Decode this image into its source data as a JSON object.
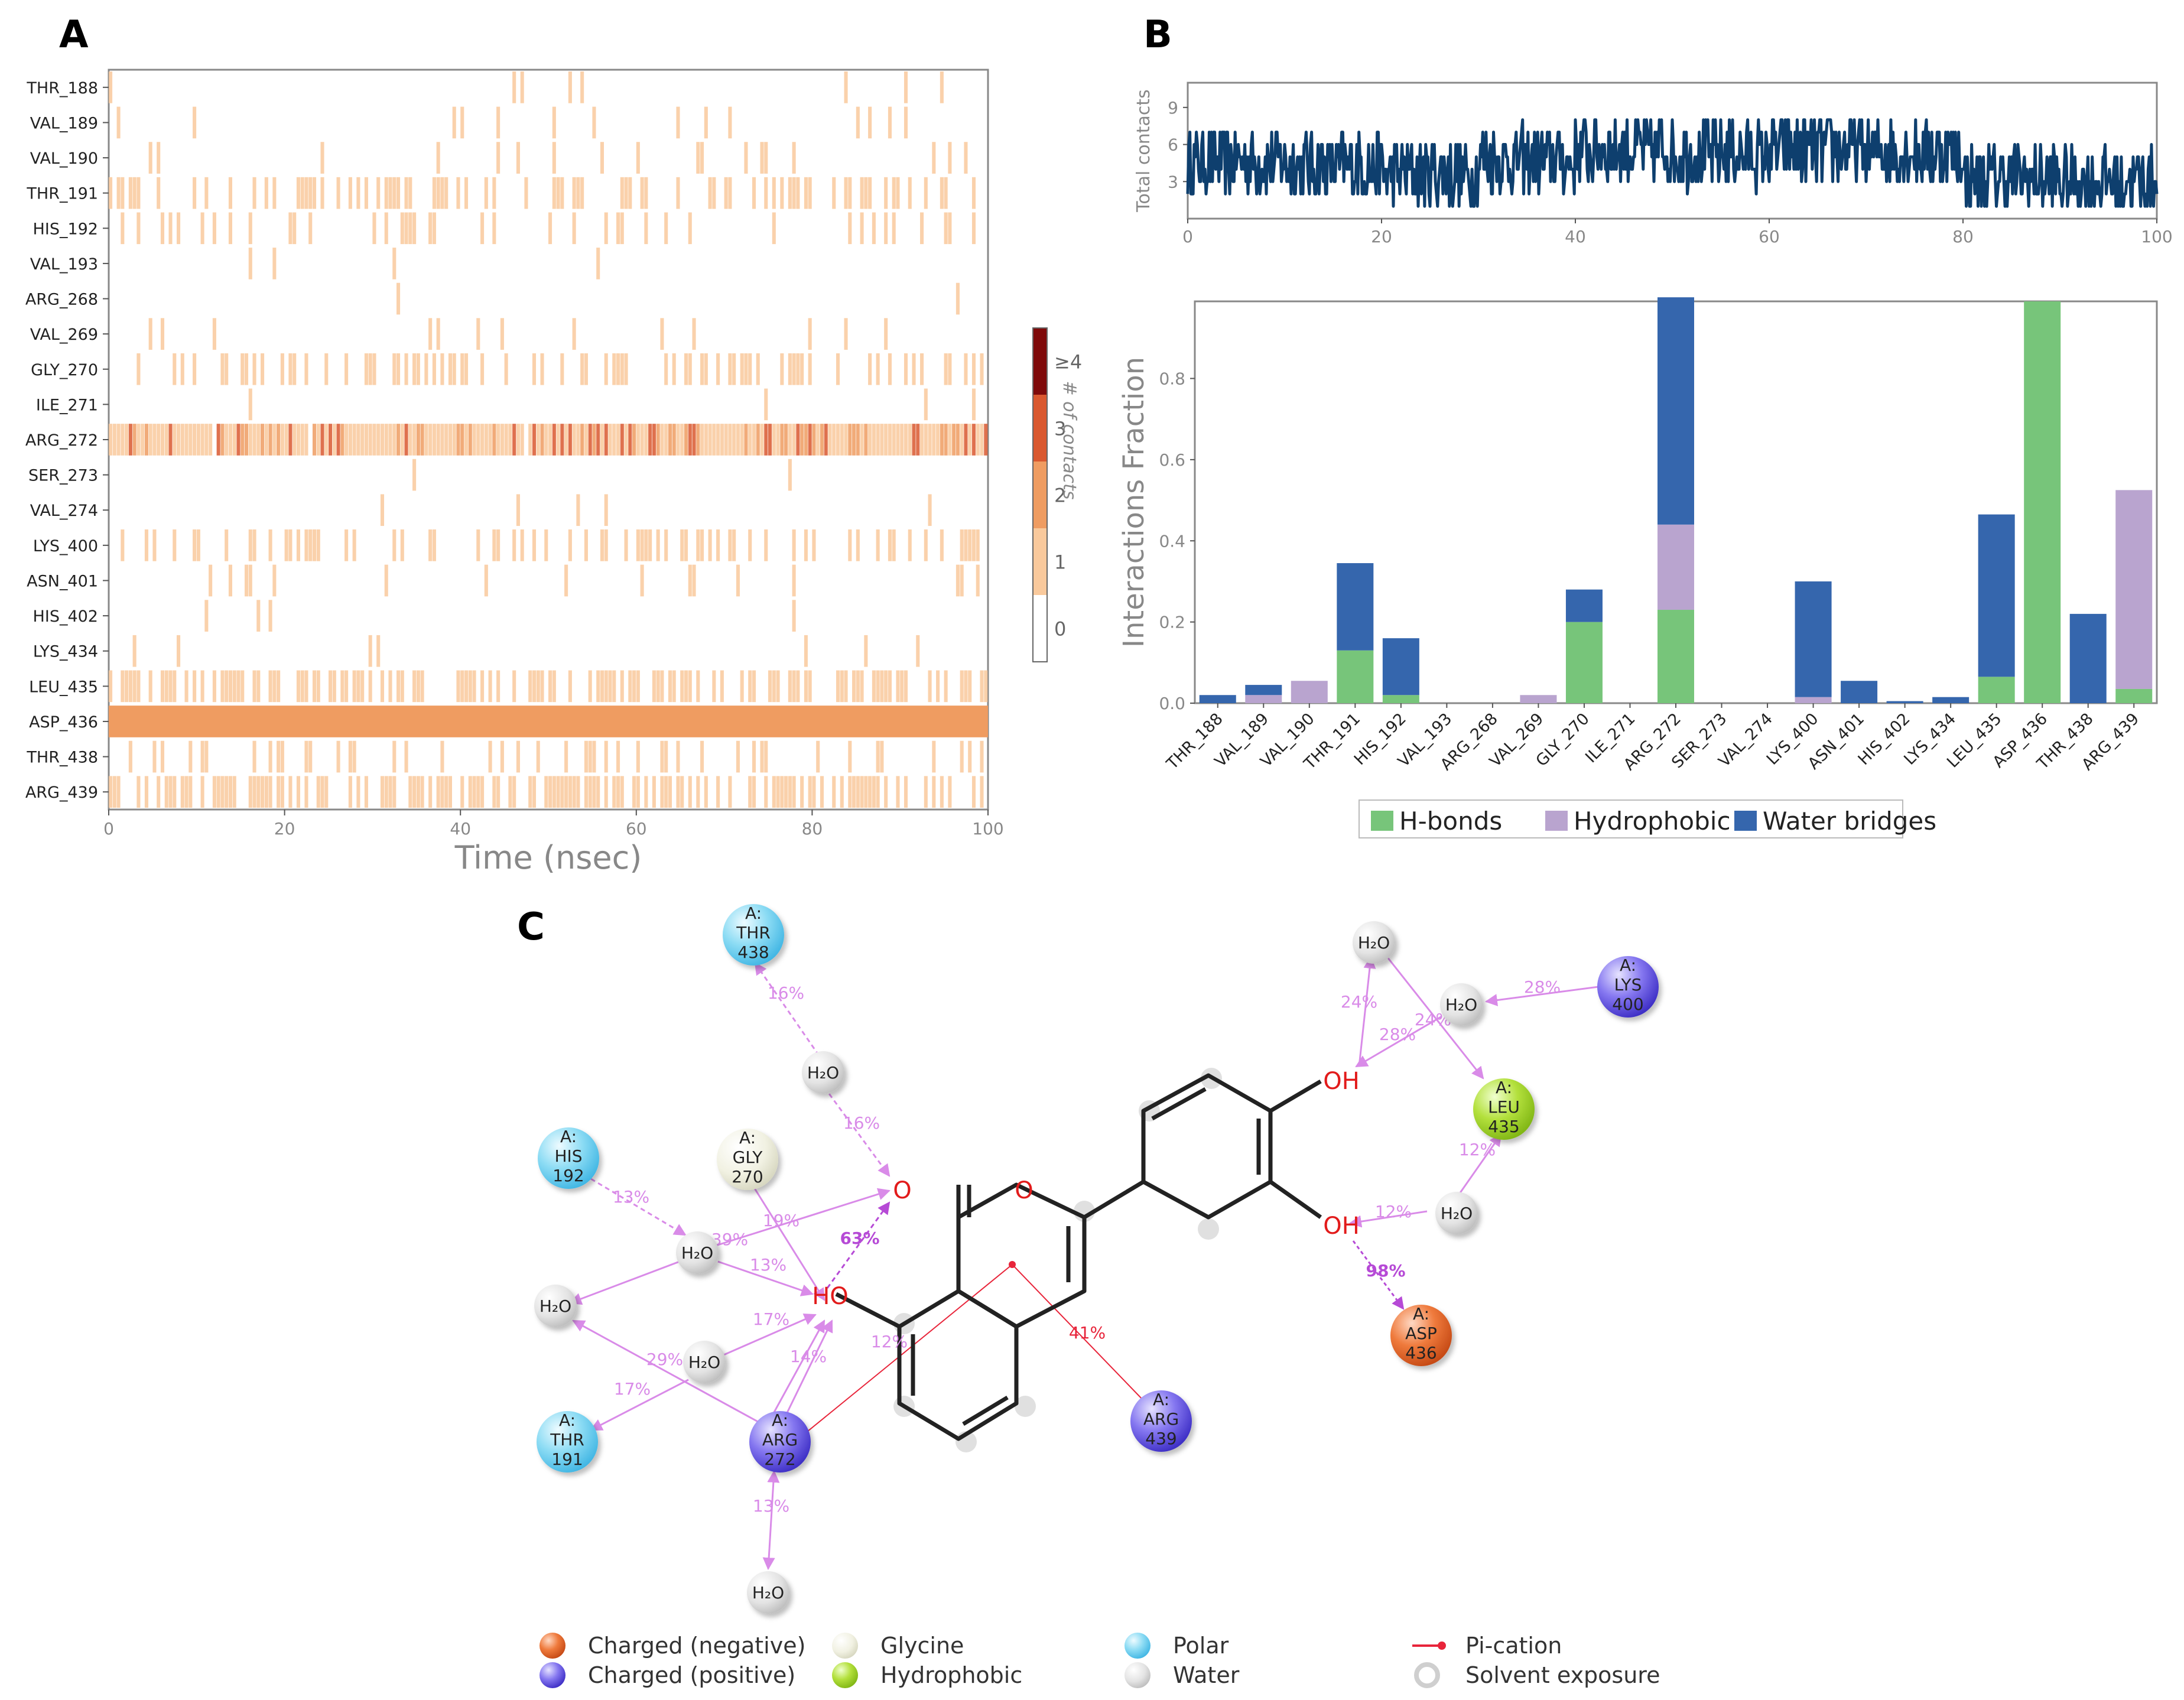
{
  "panel_labels": {
    "a": "A",
    "b": "B",
    "c": "C"
  },
  "colors": {
    "contact_scale": [
      "#ffffff",
      "#f9c99c",
      "#ef9c61",
      "#d9582f",
      "#7f0a0a"
    ],
    "hbond": "#77c57a",
    "hydrophobic": "#b9a4cf",
    "water_bridge": "#3566ad",
    "trace": "#0e3f6e",
    "interaction_arrow": "#d98be8",
    "pi_cation": "#e8243a",
    "charged_negative": "#e8632a",
    "charged_positive": "#6a5ce0",
    "glycine": "#eeeedc",
    "hydrophobic_res": "#a6d630",
    "polar": "#78d3ef",
    "water": "#d9d9d9"
  },
  "chart_data": [
    {
      "id": "A",
      "type": "heatmap",
      "xlabel": "Time (nsec)",
      "xlim": [
        0,
        100
      ],
      "xticks": [
        "0",
        "20",
        "40",
        "60",
        "80",
        "100"
      ],
      "rows": [
        "THR_188",
        "VAL_189",
        "VAL_190",
        "THR_191",
        "HIS_192",
        "VAL_193",
        "ARG_268",
        "VAL_269",
        "GLY_270",
        "ILE_271",
        "ARG_272",
        "SER_273",
        "VAL_274",
        "LYS_400",
        "ASN_401",
        "HIS_402",
        "LYS_434",
        "LEU_435",
        "ASP_436",
        "THR_438",
        "ARG_439"
      ],
      "row_occupancy": [
        0.02,
        0.05,
        0.06,
        0.34,
        0.16,
        0.0,
        0.0,
        0.03,
        0.28,
        0.0,
        0.95,
        0.0,
        0.0,
        0.3,
        0.06,
        0.0,
        0.02,
        0.47,
        1.0,
        0.22,
        0.52
      ],
      "colorbar": {
        "label": "# of contacts",
        "ticks": [
          "0",
          "1",
          "2",
          "3",
          "≥4"
        ]
      }
    },
    {
      "id": "B-top",
      "type": "line",
      "ylabel": "Total contacts",
      "xlim": [
        0,
        100
      ],
      "ylim": [
        0,
        11
      ],
      "xticks": [
        "0",
        "20",
        "40",
        "60",
        "80",
        "100"
      ],
      "yticks": [
        "3",
        "6",
        "9"
      ],
      "mean_by_decile": [
        4.6,
        4.3,
        3.7,
        4.8,
        5.6,
        5.2,
        5.6,
        5.4,
        3.3,
        3.0
      ]
    },
    {
      "id": "B-bottom",
      "type": "bar",
      "ylabel": "Interactions Fraction",
      "ylim": [
        0,
        0.99
      ],
      "yticks": [
        "0.0",
        "0.2",
        "0.4",
        "0.6",
        "0.8"
      ],
      "categories": [
        "THR_188",
        "VAL_189",
        "VAL_190",
        "THR_191",
        "HIS_192",
        "VAL_193",
        "ARG_268",
        "VAL_269",
        "GLY_270",
        "ILE_271",
        "ARG_272",
        "SER_273",
        "VAL_274",
        "LYS_400",
        "ASN_401",
        "HIS_402",
        "LYS_434",
        "LEU_435",
        "ASP_436",
        "THR_438",
        "ARG_439"
      ],
      "series": [
        {
          "name": "H-bonds",
          "values": [
            0,
            0,
            0,
            0.13,
            0.02,
            0,
            0,
            0,
            0.2,
            0,
            0.23,
            0,
            0,
            0,
            0,
            0,
            0,
            0.065,
            0.99,
            0,
            0.035
          ]
        },
        {
          "name": "Hydrophobic",
          "values": [
            0,
            0.02,
            0.055,
            0,
            0,
            0,
            0,
            0.02,
            0,
            0,
            0.21,
            0,
            0,
            0.015,
            0,
            0,
            0,
            0,
            0,
            0,
            0.49
          ]
        },
        {
          "name": "Water bridges",
          "values": [
            0.02,
            0.025,
            0,
            0.215,
            0.14,
            0,
            0,
            0,
            0.08,
            0,
            0.56,
            0,
            0,
            0.285,
            0.055,
            0.005,
            0.015,
            0.4,
            0,
            0.22,
            0
          ]
        }
      ],
      "legend": [
        "H-bonds",
        "Hydrophobic",
        "Water bridges"
      ]
    }
  ],
  "diagram_c": {
    "residues": [
      {
        "line1": "A:",
        "line2": "THR",
        "line3": "438",
        "kind": "polar"
      },
      {
        "line1": "A:",
        "line2": "HIS",
        "line3": "192",
        "kind": "polar"
      },
      {
        "line1": "A:",
        "line2": "GLY",
        "line3": "270",
        "kind": "glycine"
      },
      {
        "line1": "A:",
        "line2": "THR",
        "line3": "191",
        "kind": "polar"
      },
      {
        "line1": "A:",
        "line2": "ARG",
        "line3": "272",
        "kind": "positive"
      },
      {
        "line1": "A:",
        "line2": "ARG",
        "line3": "439",
        "kind": "positive"
      },
      {
        "line1": "A:",
        "line2": "LYS",
        "line3": "400",
        "kind": "positive"
      },
      {
        "line1": "A:",
        "line2": "LEU",
        "line3": "435",
        "kind": "hydrophobic"
      },
      {
        "line1": "A:",
        "line2": "ASP",
        "line3": "436",
        "kind": "negative"
      }
    ],
    "water_label": "H₂O",
    "atom_labels": [
      "O",
      "O",
      "HO",
      "OH",
      "OH"
    ],
    "percentages": [
      "16%",
      "16%",
      "13%",
      "19%",
      "63%",
      "39%",
      "13%",
      "17%",
      "14%",
      "29%",
      "17%",
      "12%",
      "13%",
      "41%",
      "24%",
      "28%",
      "28%",
      "24%",
      "12%",
      "12%",
      "98%"
    ],
    "legend": [
      "Charged (negative)",
      "Charged (positive)",
      "Glycine",
      "Hydrophobic",
      "Polar",
      "Water",
      "Pi-cation",
      "Solvent exposure"
    ]
  }
}
